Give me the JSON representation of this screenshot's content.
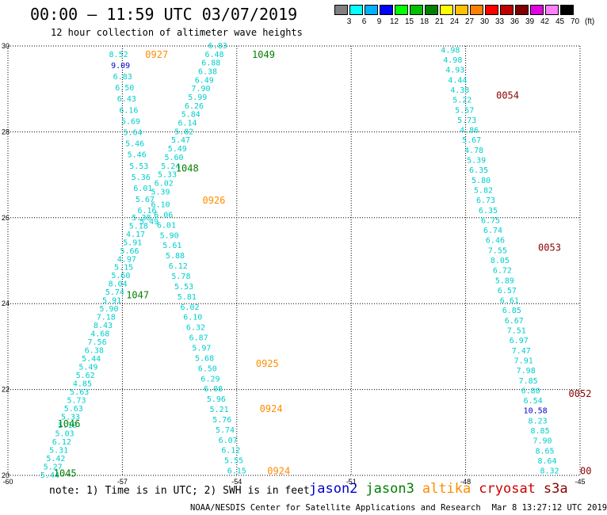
{
  "title": "00:00 — 11:59 UTC 03/07/2019",
  "subtitle": "12 hour collection of altimeter wave heights",
  "colorbar": {
    "colors": [
      "#7f7f7f",
      "#00ffff",
      "#00b0ff",
      "#0000ff",
      "#00ff00",
      "#00c000",
      "#008000",
      "#ffff00",
      "#ffc000",
      "#ff8000",
      "#ff0000",
      "#c00000",
      "#800000",
      "#e000e0",
      "#ff80ff",
      "#000000"
    ],
    "labels": [
      "3",
      "6",
      "9",
      "12",
      "15",
      "18",
      "21",
      "24",
      "27",
      "30",
      "33",
      "36",
      "39",
      "42",
      "45",
      "70"
    ],
    "unit": "(ft)"
  },
  "note": "note: 1) Time is in UTC; 2) SWH is in feet",
  "legend": [
    {
      "label": "jason2",
      "color": "#0000cd"
    },
    {
      "label": "jason3",
      "color": "#008000"
    },
    {
      "label": "altika",
      "color": "#ff8c00"
    },
    {
      "label": "cryosat",
      "color": "#cc0000"
    },
    {
      "label": "s3a",
      "color": "#8b0000"
    }
  ],
  "footer": {
    "org": "NOAA/NESDIS Center for Satellite Applications and Research",
    "date": "Mar  8 13:27:12 UTC 2019"
  },
  "chart_data": {
    "type": "scatter",
    "xlim": [
      -60,
      -45
    ],
    "ylim": [
      20,
      30
    ],
    "x_ticks": [
      "-60",
      "-57",
      "-54",
      "-51",
      "-48",
      "-45"
    ],
    "y_ticks": [
      "20",
      "22",
      "24",
      "26",
      "28",
      "30"
    ],
    "grid": true,
    "colors": {
      "cyan": "#00cdcd",
      "blue": "#0000cd",
      "jason3": "#008000",
      "altika": "#ff8c00",
      "s3a": "#8b0000"
    },
    "tracks": [
      {
        "x0": -57.1,
        "y0": 29.8,
        "x1": -56.3,
        "y1": 25.9,
        "color": "cyan",
        "values": [
          "8.52",
          "9.09",
          "6.83",
          "6.50",
          "6.43",
          "6.16",
          "5.69",
          "5.64",
          "5.46",
          "5.46",
          "5.53",
          "5.36",
          "6.01",
          "5.67",
          "6.16",
          "5.49"
        ],
        "blue_index": 1
      },
      {
        "x0": -56.5,
        "y0": 26.0,
        "x1": -58.9,
        "y1": 20.0,
        "color": "cyan",
        "values": [
          "5.38",
          "5.18",
          "4.17",
          "5.91",
          "5.66",
          "4.97",
          "5.15",
          "5.60",
          "8.04",
          "5.74",
          "5.91",
          "5.90",
          "7.18",
          "8.43",
          "4.68",
          "7.56",
          "6.38",
          "5.44",
          "5.49",
          "5.62",
          "4.85",
          "5.63",
          "5.73",
          "5.63",
          "5.33",
          "5.10",
          "5.03",
          "6.12",
          "5.31",
          "5.42",
          "5.27",
          "5.44"
        ]
      },
      {
        "x0": -54.5,
        "y0": 30.0,
        "x1": -56.0,
        "y1": 26.6,
        "color": "cyan",
        "values": [
          "6.83",
          "6.48",
          "6.88",
          "6.38",
          "6.49",
          "7.90",
          "5.99",
          "6.26",
          "5.84",
          "6.14",
          "5.82",
          "5.47",
          "5.49",
          "5.60",
          "5.24",
          "5.33",
          "6.02",
          "5.39"
        ]
      },
      {
        "x0": -56.0,
        "y0": 26.3,
        "x1": -54.0,
        "y1": 20.1,
        "color": "cyan",
        "values": [
          "6.10",
          "6.06",
          "6.01",
          "5.90",
          "5.61",
          "5.88",
          "6.12",
          "5.78",
          "5.53",
          "5.81",
          "6.02",
          "6.10",
          "6.32",
          "6.87",
          "5.97",
          "5.68",
          "6.50",
          "6.29",
          "6.08",
          "5.96",
          "5.21",
          "5.76",
          "5.74",
          "6.07",
          "6.12",
          "5.55",
          "6.15"
        ]
      },
      {
        "x0": -48.4,
        "y0": 29.9,
        "x1": -45.8,
        "y1": 20.1,
        "color": "cyan",
        "values": [
          "4.98",
          "4.98",
          "4.93",
          "4.44",
          "4.38",
          "5.22",
          "5.57",
          "5.73",
          "4.86",
          "5.67",
          "4.78",
          "5.39",
          "6.35",
          "5.80",
          "5.82",
          "6.73",
          "6.35",
          "6.75",
          "6.74",
          "6.46",
          "7.55",
          "8.05",
          "6.72",
          "5.89",
          "6.57",
          "6.61",
          "6.85",
          "6.67",
          "7.51",
          "6.97",
          "7.47",
          "7.91",
          "7.98",
          "7.85",
          "6.80",
          "6.54",
          "10.58",
          "8.23",
          "8.85",
          "7.90",
          "8.65",
          "8.64",
          "8.32"
        ],
        "blue_index": 36
      }
    ],
    "time_labels": [
      {
        "text": "0927",
        "x": -56.4,
        "y": 29.8,
        "series": "altika"
      },
      {
        "text": "1049",
        "x": -53.6,
        "y": 29.8,
        "series": "jason3"
      },
      {
        "text": "1048",
        "x": -55.6,
        "y": 27.15,
        "series": "jason3"
      },
      {
        "text": "0926",
        "x": -54.9,
        "y": 26.4,
        "series": "altika"
      },
      {
        "text": "1047",
        "x": -56.9,
        "y": 24.2,
        "series": "jason3"
      },
      {
        "text": "0925",
        "x": -53.5,
        "y": 22.6,
        "series": "altika"
      },
      {
        "text": "0924",
        "x": -53.4,
        "y": 21.55,
        "series": "altika"
      },
      {
        "text": "1046",
        "x": -58.7,
        "y": 21.2,
        "series": "jason3"
      },
      {
        "text": "1045",
        "x": -58.8,
        "y": 20.05,
        "series": "jason3"
      },
      {
        "text": "0924",
        "x": -53.2,
        "y": 20.1,
        "series": "altika"
      },
      {
        "text": "0054",
        "x": -47.2,
        "y": 28.85,
        "series": "s3a"
      },
      {
        "text": "0053",
        "x": -46.1,
        "y": 25.3,
        "series": "s3a"
      },
      {
        "text": "0052",
        "x": -45.3,
        "y": 21.9,
        "series": "s3a"
      },
      {
        "text": "00",
        "x": -45.0,
        "y": 20.1,
        "series": "s3a"
      }
    ]
  }
}
